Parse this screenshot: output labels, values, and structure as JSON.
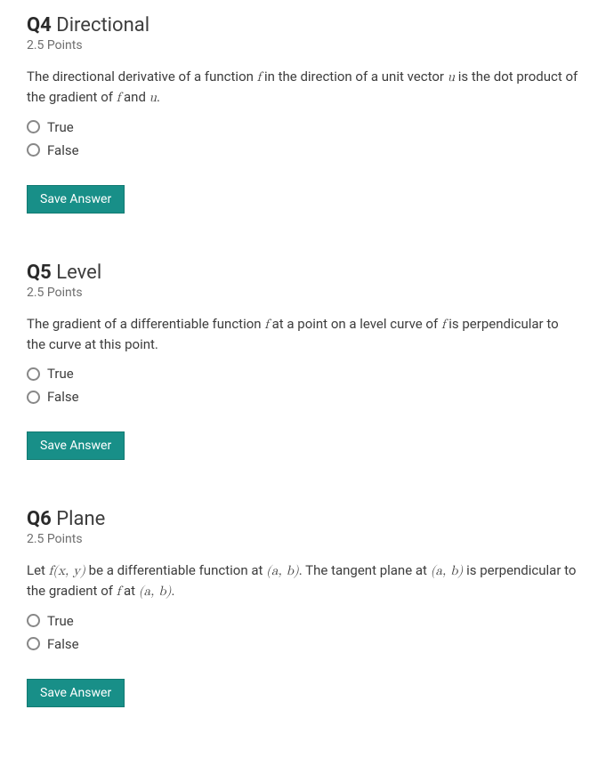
{
  "colors": {
    "background": "#fafafa",
    "page_bg": "#ffffff",
    "text": "#3d3d3d",
    "muted": "#6e6e6e",
    "button_bg": "#188f88",
    "button_border": "#117a72",
    "button_text": "#ffffff",
    "radio_border": "#888888"
  },
  "button_label": "Save Answer",
  "option_true": "True",
  "option_false": "False",
  "questions": [
    {
      "number": "Q4",
      "title": "Directional",
      "points": "2.5 Points",
      "stem_parts": [
        "The directional derivative of a function ",
        " in the direction of a unit vector ",
        " is the dot product of the gradient of ",
        " and ",
        "."
      ],
      "math": {
        "f": "f",
        "u": "u"
      }
    },
    {
      "number": "Q5",
      "title": "Level",
      "points": "2.5 Points",
      "stem_parts": [
        "The gradient of a differentiable function ",
        " at a point on a level curve of ",
        " is perpendicular to the curve at this point."
      ],
      "math": {
        "f": "f"
      }
    },
    {
      "number": "Q6",
      "title": "Plane",
      "points": "2.5 Points",
      "stem_parts": [
        "Let ",
        " be a differentiable function at ",
        ". The tangent plane at ",
        " is perpendicular to the gradient of ",
        " at ",
        "."
      ],
      "math": {
        "fxy": "f(x, y)",
        "ab": "(a, b)",
        "f": "f"
      }
    }
  ]
}
